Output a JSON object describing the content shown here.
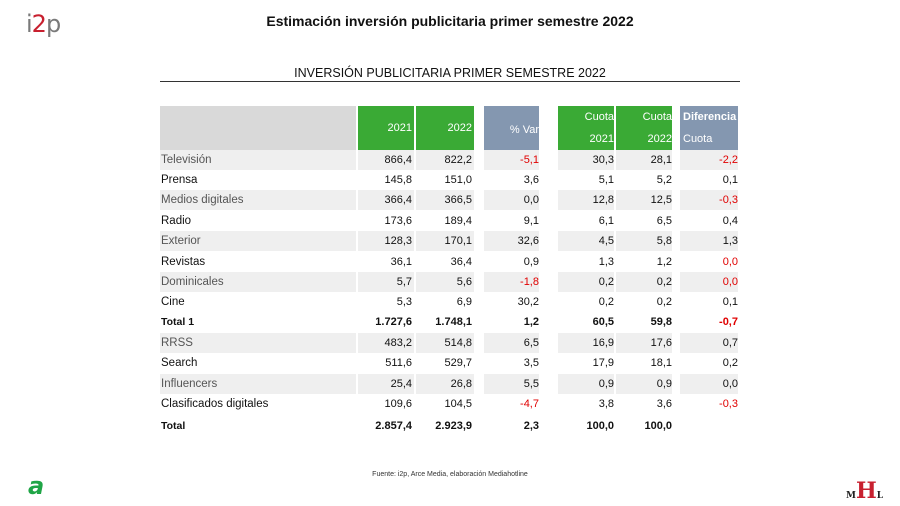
{
  "header": {
    "logo_prefix": "i",
    "logo_digit": "2",
    "logo_suffix": "p",
    "title": "Estimación inversión publicitaria primer semestre 2022"
  },
  "table_title": "INVERSIÓN PUBLICITARIA PRIMER SEMESTRE 2022",
  "columns": {
    "y2021": "2021",
    "y2022": "2022",
    "var": "% Var",
    "cuota1": "Cuota",
    "cuota1_year": "2021",
    "cuota2": "Cuota",
    "cuota2_year": "2022",
    "dif": "Diferencia",
    "dif_sub": "Cuota"
  },
  "colors": {
    "green": "#3aaa35",
    "bluegray": "#8497b0",
    "header_gray": "#d9d9d9",
    "negative": "#e00000"
  },
  "chart_data": {
    "type": "table",
    "title": "INVERSIÓN PUBLICITARIA PRIMER SEMESTRE 2022",
    "columns": [
      "2021",
      "2022",
      "% Var",
      "Cuota 2021",
      "Cuota 2022",
      "Diferencia Cuota"
    ],
    "rows": [
      {
        "label": "Televisión",
        "v2021": "866,4",
        "v2022": "822,2",
        "var": "-5,1",
        "c2021": "30,3",
        "c2022": "28,1",
        "dif": "-2,2"
      },
      {
        "label": "Prensa",
        "v2021": "145,8",
        "v2022": "151,0",
        "var": "3,6",
        "c2021": "5,1",
        "c2022": "5,2",
        "dif": "0,1"
      },
      {
        "label": "Medios digitales",
        "v2021": "366,4",
        "v2022": "366,5",
        "var": "0,0",
        "c2021": "12,8",
        "c2022": "12,5",
        "dif": "-0,3"
      },
      {
        "label": "Radio",
        "v2021": "173,6",
        "v2022": "189,4",
        "var": "9,1",
        "c2021": "6,1",
        "c2022": "6,5",
        "dif": "0,4"
      },
      {
        "label": "Exterior",
        "v2021": "128,3",
        "v2022": "170,1",
        "var": "32,6",
        "c2021": "4,5",
        "c2022": "5,8",
        "dif": "1,3"
      },
      {
        "label": "Revistas",
        "v2021": "36,1",
        "v2022": "36,4",
        "var": "0,9",
        "c2021": "1,3",
        "c2022": "1,2",
        "dif": "0,0"
      },
      {
        "label": "Dominicales",
        "v2021": "5,7",
        "v2022": "5,6",
        "var": "-1,8",
        "c2021": "0,2",
        "c2022": "0,2",
        "dif": "0,0"
      },
      {
        "label": "Cine",
        "v2021": "5,3",
        "v2022": "6,9",
        "var": "30,2",
        "c2021": "0,2",
        "c2022": "0,2",
        "dif": "0,1"
      },
      {
        "label": "Total 1",
        "v2021": "1.727,6",
        "v2022": "1.748,1",
        "var": "1,2",
        "c2021": "60,5",
        "c2022": "59,8",
        "dif": "-0,7"
      },
      {
        "label": "RRSS",
        "v2021": "483,2",
        "v2022": "514,8",
        "var": "6,5",
        "c2021": "16,9",
        "c2022": "17,6",
        "dif": "0,7"
      },
      {
        "label": "Search",
        "v2021": "511,6",
        "v2022": "529,7",
        "var": "3,5",
        "c2021": "17,9",
        "c2022": "18,1",
        "dif": "0,2"
      },
      {
        "label": "Influencers",
        "v2021": "25,4",
        "v2022": "26,8",
        "var": "5,5",
        "c2021": "0,9",
        "c2022": "0,9",
        "dif": "0,0"
      },
      {
        "label": "Clasificados digitales",
        "v2021": "109,6",
        "v2022": "104,5",
        "var": "-4,7",
        "c2021": "3,8",
        "c2022": "3,6",
        "dif": "-0,3"
      },
      {
        "label": "Total",
        "v2021": "2.857,4",
        "v2022": "2.923,9",
        "var": "2,3",
        "c2021": "100,0",
        "c2022": "100,0",
        "dif": ""
      }
    ],
    "highlight_red": {
      "var": [
        "-5,1",
        "-1,8",
        "-4,7"
      ],
      "dif": [
        "-2,2",
        "-0,3",
        "0,0",
        "0,0",
        "-0,7",
        "-0,3"
      ]
    }
  },
  "footer": {
    "source": "Fuente: i2p, Arce Media, elaboración Mediahotline",
    "left_logo": "a",
    "right_logo_m": "M",
    "right_logo_h": "H",
    "right_logo_l": "L"
  }
}
